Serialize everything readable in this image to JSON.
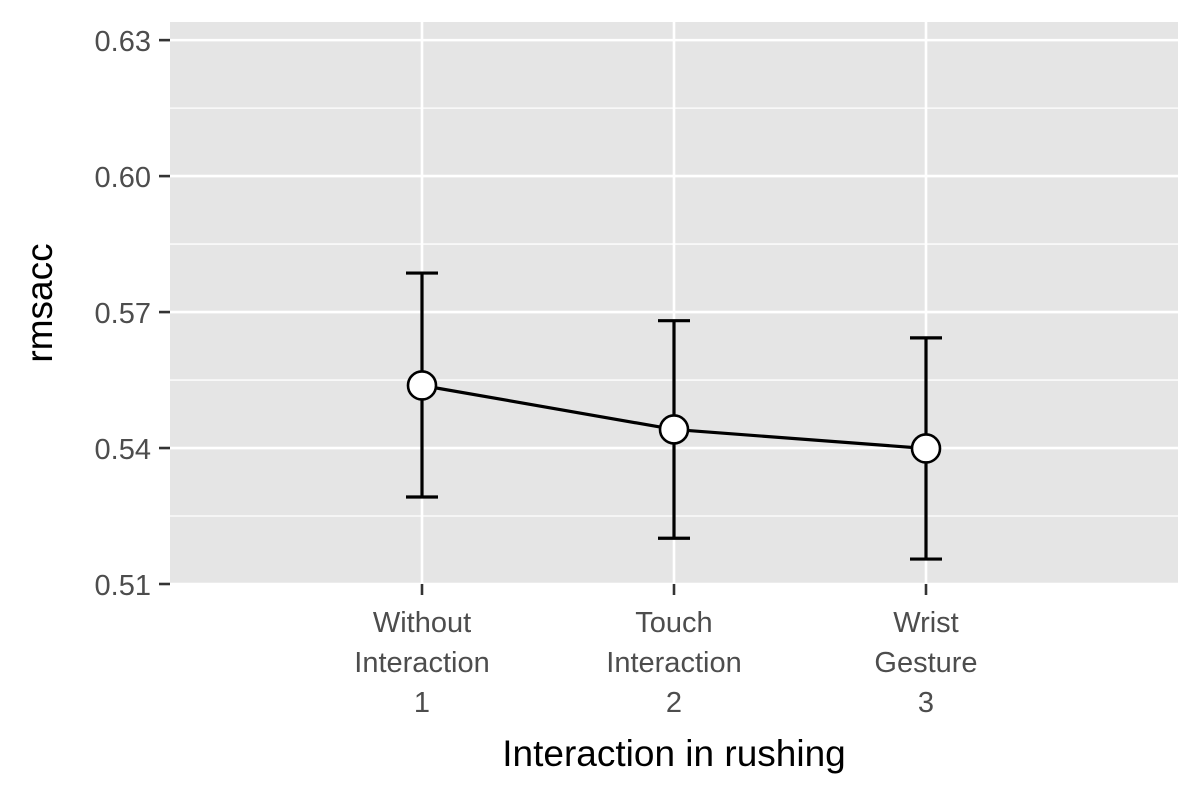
{
  "chart_data": {
    "type": "line",
    "xlabel": "Interaction in rushing",
    "ylabel": "rmsacc",
    "categories": [
      [
        "Without",
        "Interaction",
        "1"
      ],
      [
        "Touch",
        "Interaction",
        "2"
      ],
      [
        "Wrist",
        "Gesture",
        "3"
      ]
    ],
    "series": [
      {
        "values": [
          0.5538,
          0.5441,
          0.5399
        ],
        "error_low": [
          0.5292,
          0.5201,
          0.5155
        ],
        "error_high": [
          0.5786,
          0.5681,
          0.5643
        ]
      }
    ],
    "ylim": [
      0.51,
      0.634
    ],
    "yticks": [
      0.51,
      0.54,
      0.57,
      0.6,
      0.63
    ],
    "ytick_labels": [
      "0.51",
      "0.54",
      "0.57",
      "0.60",
      "0.63"
    ],
    "y_minor_ticks": [
      0.525,
      0.555,
      0.585,
      0.615
    ],
    "grid": true,
    "colors": {
      "panel_bg": "#e5e5e5",
      "grid": "#ffffff",
      "line": "#000000",
      "point_fill": "#ffffff",
      "tick_text": "#4d4d4d",
      "tick_mark": "#333333",
      "label_text": "#000000"
    }
  }
}
